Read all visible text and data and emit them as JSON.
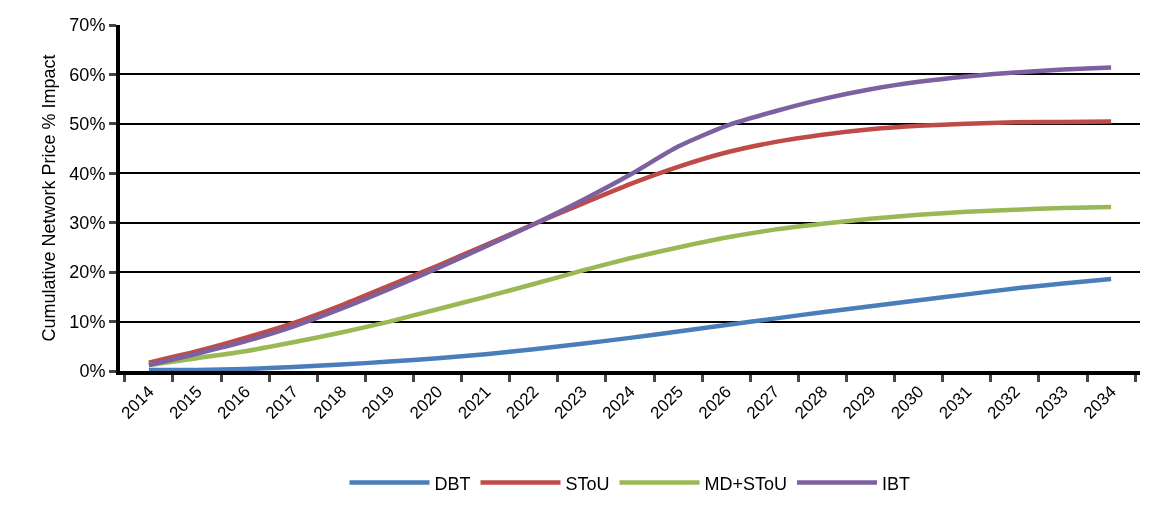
{
  "chart_data": {
    "type": "line",
    "ylabel": "Cumulative Network Price % Impact",
    "categories": [
      "2014",
      "2015",
      "2016",
      "2017",
      "2018",
      "2019",
      "2020",
      "2021",
      "2022",
      "2023",
      "2024",
      "2025",
      "2026",
      "2027",
      "2028",
      "2029",
      "2030",
      "2031",
      "2032",
      "2033",
      "2034"
    ],
    "series": [
      {
        "name": "DBT",
        "color": "#4a7ebb",
        "values": [
          0.2,
          0.2,
          0.4,
          0.8,
          1.3,
          1.9,
          2.6,
          3.4,
          4.4,
          5.5,
          6.7,
          8,
          9.3,
          10.6,
          11.9,
          13.1,
          14.3,
          15.5,
          16.7,
          17.7,
          18.6
        ]
      },
      {
        "name": "SToU",
        "color": "#be4b48",
        "values": [
          1.7,
          4,
          6.7,
          9.7,
          13.3,
          17.3,
          21.3,
          25.5,
          29.7,
          33.8,
          37.8,
          41.3,
          44.2,
          46.3,
          47.8,
          48.9,
          49.6,
          50,
          50.3,
          50.4,
          50.5
        ]
      },
      {
        "name": "MD+SToU",
        "color": "#98b954",
        "values": [
          1.2,
          2.6,
          4,
          5.8,
          7.8,
          10,
          12.5,
          15,
          17.6,
          20.3,
          22.8,
          25,
          27,
          28.6,
          29.8,
          30.8,
          31.6,
          32.2,
          32.6,
          33,
          33.2
        ]
      },
      {
        "name": "IBT",
        "color": "#7d60a0",
        "values": [
          1.2,
          3.5,
          6,
          9,
          12.6,
          16.6,
          20.8,
          25.2,
          29.7,
          34.5,
          39.7,
          45.4,
          49.6,
          52.5,
          55,
          57,
          58.5,
          59.6,
          60.4,
          61,
          61.4
        ]
      }
    ],
    "ylim": [
      0,
      70
    ],
    "yticks": [
      {
        "value": 0,
        "label": "0%"
      },
      {
        "value": 10,
        "label": "10%"
      },
      {
        "value": 20,
        "label": "20%"
      },
      {
        "value": 30,
        "label": "30%"
      },
      {
        "value": 40,
        "label": "40%"
      },
      {
        "value": 50,
        "label": "50%"
      },
      {
        "value": 60,
        "label": "60%"
      },
      {
        "value": 70,
        "label": "70%"
      }
    ],
    "grid": "y",
    "legend": "bottom",
    "marker": "none",
    "line_style": "solid"
  }
}
